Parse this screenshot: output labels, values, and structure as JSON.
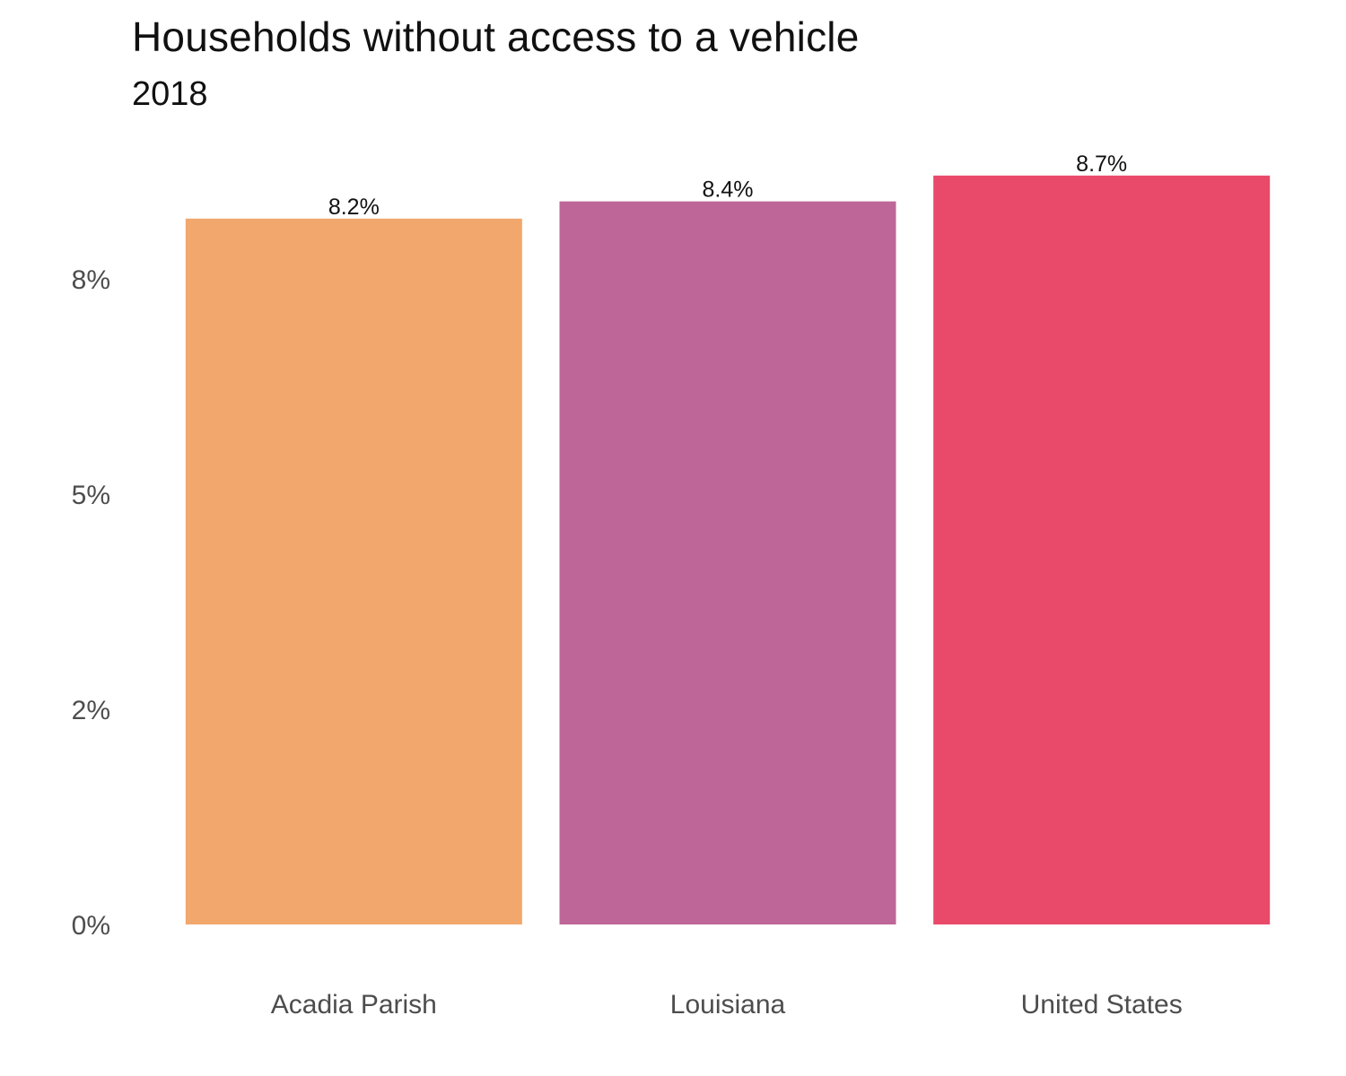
{
  "chart_data": {
    "type": "bar",
    "title": "Households without access to a vehicle",
    "subtitle": "2018",
    "xlabel": "",
    "ylabel": "",
    "categories": [
      "Acadia Parish",
      "Louisiana",
      "United States"
    ],
    "values": [
      8.2,
      8.4,
      8.7
    ],
    "data_labels": [
      "8.2%",
      "8.4%",
      "8.7%"
    ],
    "colors": [
      "#F2A76C",
      "#BF6698",
      "#E94A69"
    ],
    "ylim": [
      0,
      8.7
    ],
    "yticks": [
      0,
      2.5,
      5,
      7.5
    ],
    "ytick_labels": [
      "0%",
      "2%",
      "5%",
      "8%"
    ],
    "grid": false,
    "legend": "none"
  }
}
